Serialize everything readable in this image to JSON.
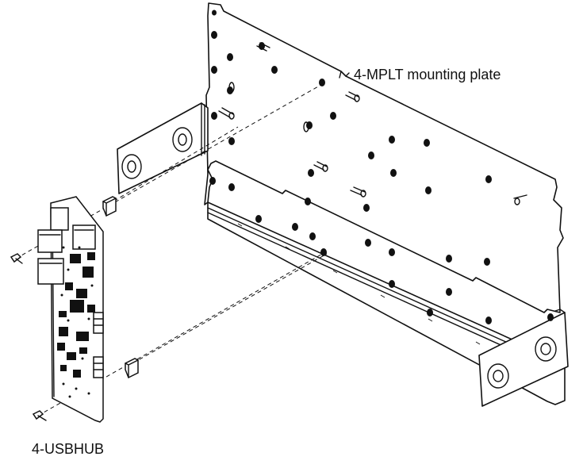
{
  "labels": {
    "mounting_plate": "4-MPLT mounting plate",
    "usb_hub": "4-USBHUB"
  }
}
